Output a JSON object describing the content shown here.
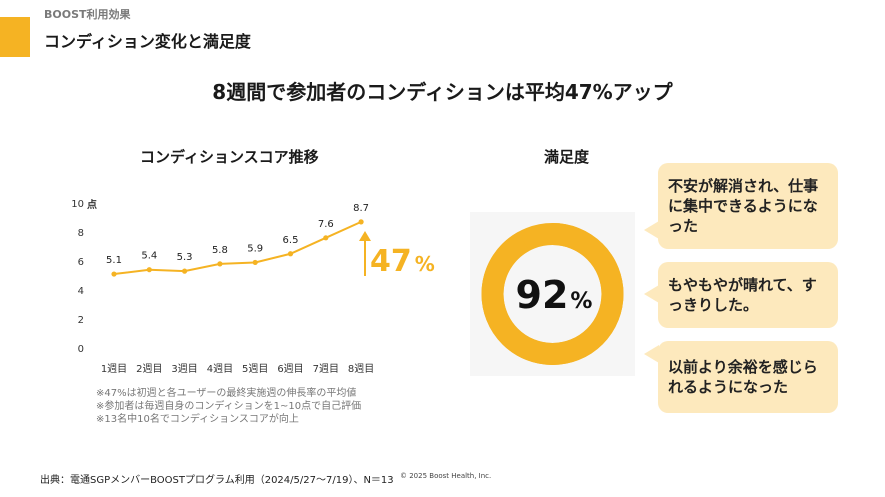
{
  "header": {
    "eyebrow": "BOOST利用効果",
    "title": "コンディション変化と満足度"
  },
  "headline": "8週間で参加者のコンディションは平均47%アップ",
  "condition_chart": {
    "title": "コンディションスコア推移",
    "unit": "点"
  },
  "chart_data": {
    "type": "line",
    "title": "コンディションスコア推移",
    "categories": [
      "1週目",
      "2週目",
      "3週目",
      "4週目",
      "5週目",
      "6週目",
      "7週目",
      "8週目"
    ],
    "values": [
      5.1,
      5.4,
      5.3,
      5.8,
      5.9,
      6.5,
      7.6,
      8.7
    ],
    "data_labels": [
      "5.1",
      "5.4",
      "5.3",
      "5.8",
      "5.9",
      "6.5",
      "7.6",
      "8.7"
    ],
    "y_ticks": [
      "0",
      "2",
      "4",
      "6",
      "8",
      "10"
    ],
    "ylim": [
      0,
      10
    ],
    "xlabel": "",
    "ylabel": "点",
    "grid": false,
    "increase_label": "47",
    "increase_unit": "%",
    "line_color": "#f5b323"
  },
  "notes": [
    "※47%は初週と各ユーザーの最終実施週の伸長率の平均値",
    "※参加者は毎週自身のコンディションを1~10点で自己評価",
    "※13名中10名でコンディションスコアが向上"
  ],
  "satisfaction": {
    "title": "満足度",
    "value": 92,
    "value_text": "92",
    "unit": "%",
    "ring_color": "#f5b323",
    "comments": [
      "不安が解消され、仕事に集中できるようになった",
      "もやもやが晴れて、すっきりした。",
      "以前より余裕を感じられるようになった"
    ]
  },
  "footer": {
    "source": "出典：電通SGPメンバーBOOSTプログラム利用（2024/5/27～7/19）、N＝13",
    "copyright": "© 2025 Boost Health, Inc."
  },
  "colors": {
    "accent": "#f5b323",
    "bubble": "#fde9bd"
  }
}
